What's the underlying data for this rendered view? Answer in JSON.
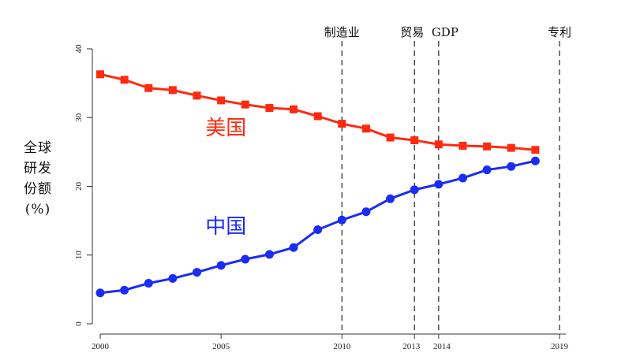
{
  "chart_data": {
    "type": "line",
    "ylabel_lines": [
      "全球",
      "研发",
      "份额",
      "(%)"
    ],
    "ylim": [
      0,
      40
    ],
    "yticks": [
      0,
      10,
      20,
      30,
      40
    ],
    "xlim": [
      2000,
      2019
    ],
    "xticks": [
      2000,
      2005,
      2010,
      2013,
      2014,
      2019
    ],
    "grid": false,
    "legend": "none",
    "series": [
      {
        "name": "美国",
        "color": "#ff2a10",
        "marker": "square",
        "x": [
          2000,
          2001,
          2002,
          2003,
          2004,
          2005,
          2006,
          2007,
          2008,
          2009,
          2010,
          2011,
          2012,
          2013,
          2014,
          2015,
          2016,
          2017,
          2018
        ],
        "values": [
          36.3,
          35.5,
          34.3,
          34.0,
          33.2,
          32.5,
          31.9,
          31.4,
          31.2,
          30.2,
          29.1,
          28.4,
          27.1,
          26.7,
          26.1,
          25.9,
          25.8,
          25.6,
          25.3
        ]
      },
      {
        "name": "中国",
        "color": "#1a2cf5",
        "marker": "circle",
        "x": [
          2000,
          2001,
          2002,
          2003,
          2004,
          2005,
          2006,
          2007,
          2008,
          2009,
          2010,
          2011,
          2012,
          2013,
          2014,
          2015,
          2016,
          2017,
          2018
        ],
        "values": [
          4.5,
          4.9,
          5.9,
          6.6,
          7.5,
          8.5,
          9.4,
          10.1,
          11.1,
          13.7,
          15.1,
          16.3,
          18.2,
          19.5,
          20.3,
          21.2,
          22.4,
          22.9,
          23.7
        ]
      }
    ],
    "series_labels": [
      {
        "text": "美国",
        "x": 2005.2,
        "y": 27.5,
        "color": "#ff2a10"
      },
      {
        "text": "中国",
        "x": 2005.2,
        "y": 13.2,
        "color": "#1a2cf5"
      }
    ],
    "events": [
      {
        "label": "制造业",
        "x": 2010
      },
      {
        "label": "贸易",
        "x": 2013
      },
      {
        "label": "GDP",
        "x": 2014
      },
      {
        "label": "专利",
        "x": 2019
      }
    ]
  }
}
